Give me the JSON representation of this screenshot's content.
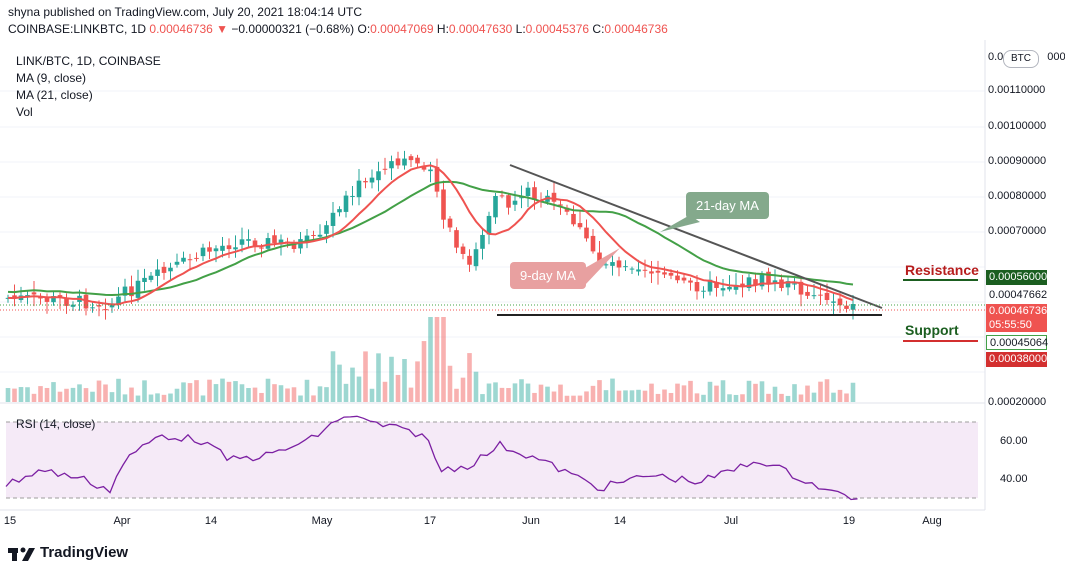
{
  "header": {
    "publish_line": "shyna published on TradingView.com, July 20, 2021 18:04:14 UTC",
    "symbol": "COINBASE:LINKBTC, 1D",
    "last": "0.00046736",
    "change": "−0.00000321 (−0.68%)",
    "o_label": "O:",
    "o_value": "0.00047069",
    "h_label": "H:",
    "h_value": "0.00047630",
    "l_label": "L:",
    "l_value": "0.00045376",
    "c_label": "C:",
    "c_value": "0.00046736"
  },
  "legend": {
    "pair": "LINK/BTC, 1D, COINBASE",
    "ma9": "MA (9, close)",
    "ma21": "MA (21, close)",
    "vol": "Vol",
    "rsi": "RSI (14, close)"
  },
  "price_axis": {
    "currency_badge": "BTC",
    "top_partial": "0.0",
    "top_partial_end": "000",
    "ticks": [
      "0.00110000",
      "0.00100000",
      "0.00090000",
      "0.00080000",
      "0.00070000"
    ],
    "low_tick": "0.00020000"
  },
  "price_tags": {
    "resistance": "0.00056000",
    "ma_tag": "0.00047662",
    "current": "0.00046736",
    "countdown": "05:55:50",
    "ma_low": "0.00045064",
    "support": "0.00038000"
  },
  "rsi_axis": [
    "60.00",
    "40.00"
  ],
  "dates": [
    "15",
    "Apr",
    "14",
    "May",
    "17",
    "Jun",
    "14",
    "Jul",
    "19",
    "Aug"
  ],
  "annotations": {
    "resistance": "Resistance",
    "support": "Support",
    "ma21_bubble": "21-day MA",
    "ma9_bubble": "9-day MA"
  },
  "colors": {
    "up": "#26a69a",
    "down": "#ef5350",
    "ma9": "#ef5350",
    "ma21": "#43a047",
    "rsi": "#7b1fa2",
    "resistance": "#1b5e20",
    "support_line": "#d32f2f"
  },
  "footer": {
    "brand": "TradingView"
  }
}
